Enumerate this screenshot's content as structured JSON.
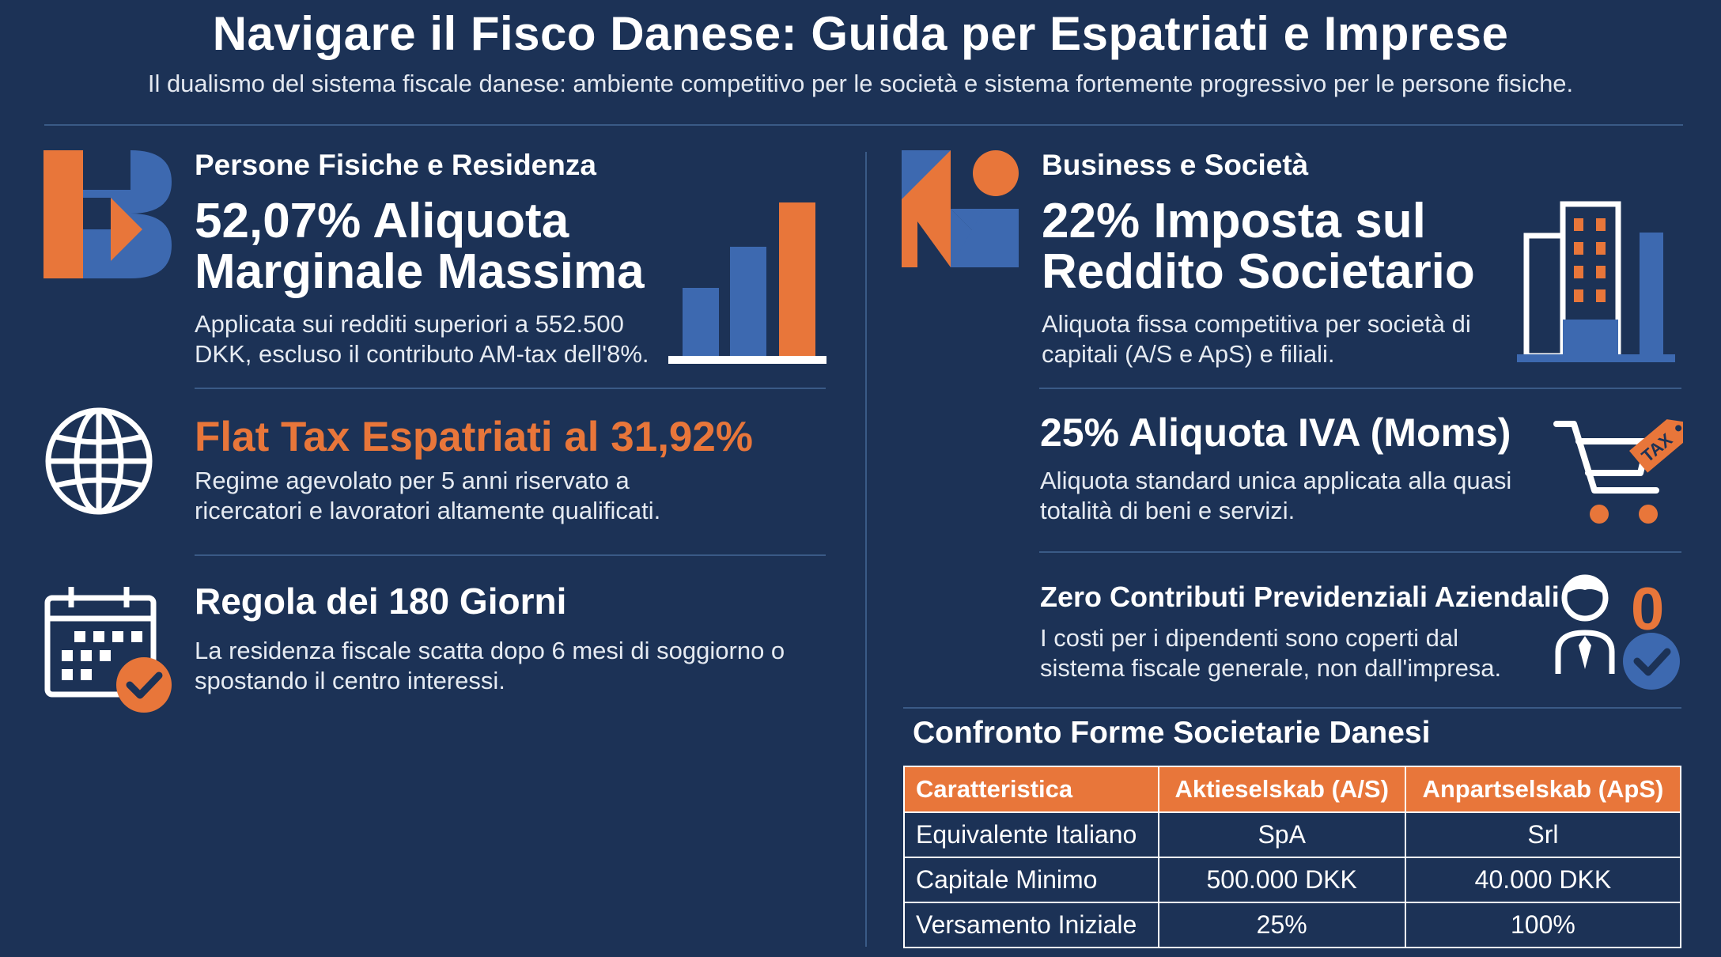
{
  "header": {
    "title": "Navigare il Fisco Danese: Guida per Espatriati e Imprese",
    "subtitle": "Il dualismo del sistema fiscale danese: ambiente competitivo per le società e sistema fortemente progressivo per le persone fisiche."
  },
  "colors": {
    "background": "#1c3256",
    "accent_orange": "#e8763a",
    "accent_blue": "#3d69b0",
    "divider": "#3a5a86"
  },
  "left": {
    "section_label": "Persone Fisiche e Residenza",
    "marginal": {
      "stat_line1": "52,07% Aliquota",
      "stat_line2": "Marginale Massima",
      "desc_line1": "Applicata sui redditi superiori a 552.500",
      "desc_line2": "DKK, escluso il contributo AM-tax dell'8%.",
      "icon": "bar-chart-icon"
    },
    "flat_tax": {
      "stat": "Flat Tax Espatriati al 31,92%",
      "desc_line1": "Regime agevolato per 5 anni riservato a",
      "desc_line2": "ricercatori e lavoratori altamente qualificati.",
      "icon": "globe-icon"
    },
    "residence": {
      "stat": "Regola dei 180 Giorni",
      "desc_line1": "La residenza fiscale scatta dopo 6 mesi di soggiorno o",
      "desc_line2": "spostando il centro interessi.",
      "icon": "calendar-check-icon"
    }
  },
  "right": {
    "section_label": "Business e Società",
    "corporate": {
      "stat_line1": "22% Imposta sul",
      "stat_line2": "Reddito Societario",
      "desc_line1": "Aliquota fissa competitiva per società di",
      "desc_line2": "capitali (A/S e ApS) e filiali.",
      "icon": "office-building-icon"
    },
    "vat": {
      "stat": "25% Aliquota IVA (Moms)",
      "desc_line1": "Aliquota standard unica applicata alla quasi",
      "desc_line2": "totalità di beni e servizi.",
      "icon": "cart-tax-icon",
      "tag_text": "TAX"
    },
    "social": {
      "stat": "Zero Contributi Previdenziali Aziendali",
      "desc_line1": "I costi per i dipendenti sono coperti dal",
      "desc_line2": "sistema fiscale generale, non dall'impresa.",
      "icon": "employee-check-icon",
      "zero_label": "0"
    }
  },
  "table": {
    "title": "Confronto Forme Societarie Danesi",
    "headers": [
      "Caratteristica",
      "Aktieselskab (A/S)",
      "Anpartselskab (ApS)"
    ],
    "rows": [
      [
        "Equivalente Italiano",
        "SpA",
        "Srl"
      ],
      [
        "Capitale Minimo",
        "500.000 DKK",
        "40.000 DKK"
      ],
      [
        "Versamento Iniziale",
        "25%",
        "100%"
      ]
    ]
  }
}
